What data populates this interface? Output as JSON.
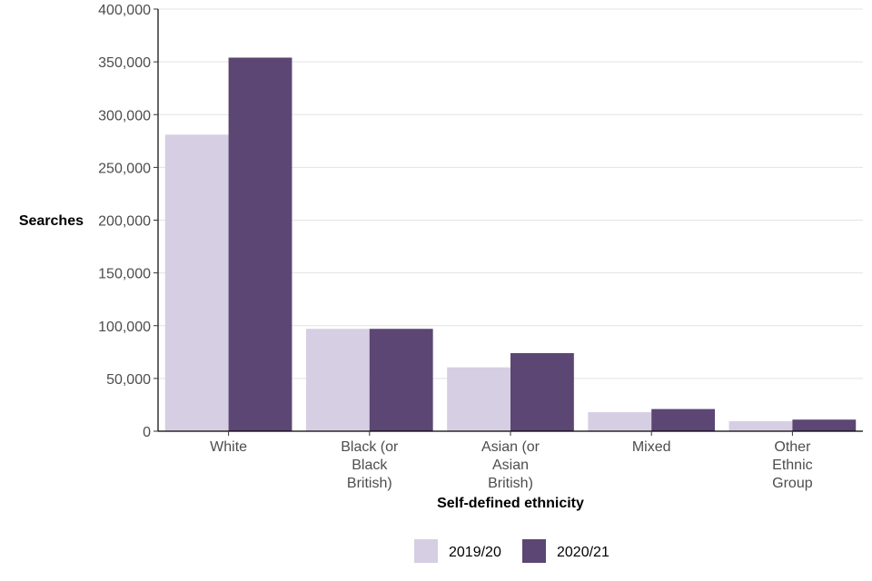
{
  "chart_data": {
    "type": "bar",
    "title": "",
    "xlabel": "Self-defined ethnicity",
    "ylabel": "Searches",
    "categories": [
      [
        "White"
      ],
      [
        "Black (or",
        "Black",
        "British)"
      ],
      [
        "Asian (or",
        "Asian",
        "British)"
      ],
      [
        "Mixed"
      ],
      [
        "Other",
        "Ethnic",
        "Group"
      ]
    ],
    "series": [
      {
        "name": "2019/20",
        "color": "#d6cee3",
        "values": [
          281000,
          97000,
          60500,
          18000,
          9500
        ]
      },
      {
        "name": "2020/21",
        "color": "#5c4673",
        "values": [
          354000,
          97000,
          74000,
          21000,
          11000
        ]
      }
    ],
    "ylim": [
      0,
      400000
    ],
    "yticks": [
      0,
      50000,
      100000,
      150000,
      200000,
      250000,
      300000,
      350000,
      400000
    ],
    "ytick_labels": [
      "0",
      "50,000",
      "100,000",
      "150,000",
      "200,000",
      "250,000",
      "300,000",
      "350,000",
      "400,000"
    ],
    "grid": "horizontal",
    "legend_position": "bottom"
  }
}
